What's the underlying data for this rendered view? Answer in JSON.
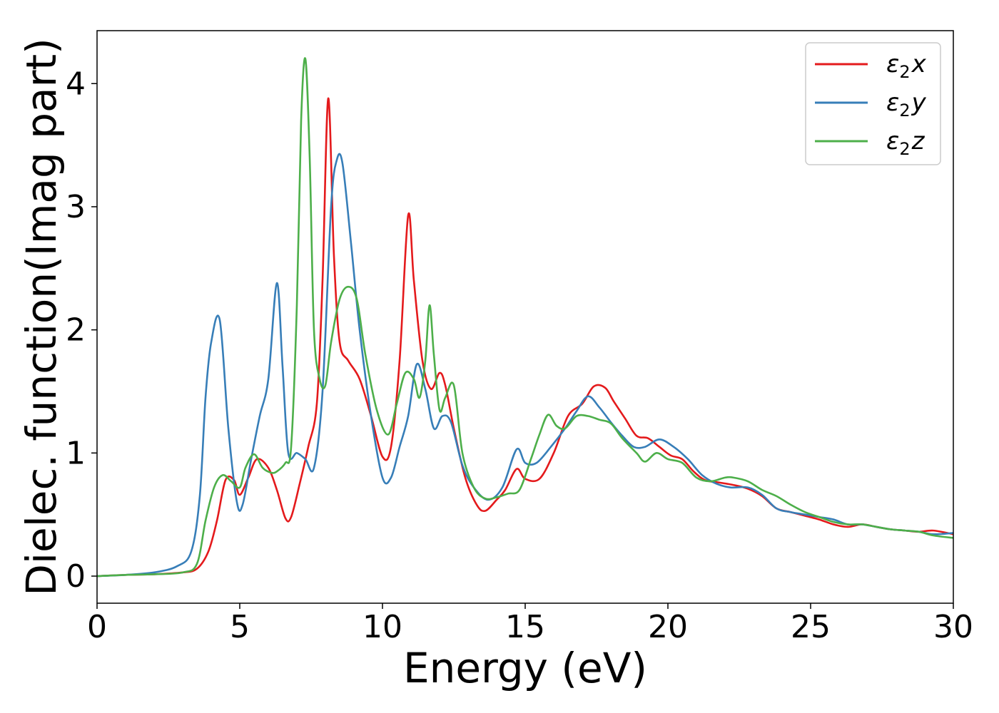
{
  "chart_data": {
    "type": "line",
    "title": "",
    "xlabel": "Energy (eV)",
    "ylabel": "Dielec. function(Imag part)",
    "xlim": [
      0,
      30
    ],
    "ylim": [
      -0.22,
      4.43
    ],
    "xticks": [
      0,
      5,
      10,
      15,
      20,
      25,
      30
    ],
    "yticks": [
      0,
      1,
      2,
      3,
      4
    ],
    "grid": false,
    "legend_position": "top-right",
    "series": [
      {
        "name": "ε₂x",
        "legend_main": "ε",
        "legend_sub": "2",
        "legend_suffix": "x",
        "color": "#e41a1c",
        "x": [
          0,
          1,
          2,
          3,
          3.5,
          3.9,
          4.2,
          4.5,
          4.8,
          5.0,
          5.3,
          5.6,
          6.0,
          6.3,
          6.6,
          6.8,
          7.1,
          7.4,
          7.7,
          7.9,
          8.1,
          8.3,
          8.5,
          8.8,
          9.2,
          9.6,
          10.0,
          10.3,
          10.6,
          10.9,
          11.1,
          11.4,
          11.7,
          12.0,
          12.2,
          12.5,
          12.9,
          13.3,
          13.6,
          14.0,
          14.3,
          14.7,
          15.0,
          15.5,
          16.0,
          16.5,
          17.0,
          17.4,
          17.8,
          18.1,
          18.5,
          18.9,
          19.3,
          19.7,
          20.1,
          20.5,
          20.9,
          21.3,
          21.8,
          22.3,
          22.8,
          23.3,
          23.8,
          24.3,
          24.8,
          25.3,
          25.8,
          26.3,
          26.8,
          27.3,
          27.8,
          28.3,
          28.8,
          29.3,
          30
        ],
        "values": [
          0.0,
          0.01,
          0.015,
          0.03,
          0.06,
          0.2,
          0.45,
          0.78,
          0.78,
          0.66,
          0.8,
          0.95,
          0.88,
          0.7,
          0.47,
          0.48,
          0.75,
          1.05,
          1.4,
          2.4,
          3.88,
          2.6,
          1.9,
          1.75,
          1.6,
          1.3,
          0.97,
          1.05,
          1.75,
          2.93,
          2.4,
          1.75,
          1.52,
          1.65,
          1.55,
          1.2,
          0.8,
          0.58,
          0.53,
          0.62,
          0.7,
          0.87,
          0.79,
          0.79,
          1.0,
          1.3,
          1.4,
          1.54,
          1.53,
          1.42,
          1.28,
          1.14,
          1.12,
          1.05,
          0.98,
          0.95,
          0.85,
          0.78,
          0.76,
          0.74,
          0.71,
          0.65,
          0.55,
          0.52,
          0.49,
          0.46,
          0.42,
          0.4,
          0.42,
          0.4,
          0.38,
          0.37,
          0.36,
          0.37,
          0.34
        ]
      },
      {
        "name": "ε₂y",
        "legend_main": "ε",
        "legend_sub": "2",
        "legend_suffix": "y",
        "color": "#377eb8",
        "x": [
          0,
          1,
          2,
          2.8,
          3.3,
          3.6,
          3.8,
          4.0,
          4.3,
          4.6,
          4.9,
          5.1,
          5.4,
          5.7,
          6.0,
          6.3,
          6.5,
          6.7,
          7.0,
          7.3,
          7.6,
          7.9,
          8.2,
          8.4,
          8.6,
          8.9,
          9.2,
          9.6,
          10.0,
          10.3,
          10.6,
          10.9,
          11.2,
          11.5,
          11.8,
          12.1,
          12.4,
          12.8,
          13.2,
          13.7,
          14.2,
          14.7,
          15.0,
          15.4,
          15.9,
          16.4,
          16.8,
          17.2,
          17.6,
          18.0,
          18.4,
          18.8,
          19.2,
          19.7,
          20.2,
          20.7,
          21.2,
          21.7,
          22.2,
          22.8,
          23.3,
          23.8,
          24.3,
          24.8,
          25.3,
          25.8,
          26.3,
          26.8,
          27.3,
          27.8,
          28.3,
          28.8,
          29.3,
          30
        ],
        "values": [
          0.0,
          0.01,
          0.03,
          0.08,
          0.2,
          0.65,
          1.45,
          1.9,
          2.08,
          1.2,
          0.6,
          0.58,
          0.95,
          1.3,
          1.6,
          2.38,
          1.7,
          1.0,
          1.0,
          0.95,
          0.88,
          1.5,
          3.0,
          3.38,
          3.35,
          2.7,
          2.0,
          1.3,
          0.8,
          0.8,
          1.05,
          1.3,
          1.72,
          1.52,
          1.2,
          1.3,
          1.25,
          0.9,
          0.72,
          0.62,
          0.72,
          1.03,
          0.92,
          0.92,
          1.05,
          1.2,
          1.34,
          1.46,
          1.37,
          1.25,
          1.14,
          1.05,
          1.05,
          1.11,
          1.05,
          0.95,
          0.82,
          0.75,
          0.72,
          0.72,
          0.66,
          0.55,
          0.52,
          0.5,
          0.48,
          0.46,
          0.42,
          0.42,
          0.4,
          0.38,
          0.37,
          0.36,
          0.34,
          0.35
        ]
      },
      {
        "name": "ε₂z",
        "legend_main": "ε",
        "legend_sub": "2",
        "legend_suffix": "z",
        "color": "#4daf4a",
        "x": [
          0,
          1,
          2,
          3,
          3.5,
          3.8,
          4.1,
          4.4,
          4.7,
          5.0,
          5.2,
          5.5,
          5.8,
          6.1,
          6.3,
          6.6,
          6.8,
          7.0,
          7.15,
          7.3,
          7.45,
          7.6,
          7.8,
          8.0,
          8.2,
          8.5,
          8.8,
          9.1,
          9.4,
          9.8,
          10.2,
          10.5,
          10.8,
          11.1,
          11.3,
          11.5,
          11.65,
          11.8,
          12.0,
          12.2,
          12.5,
          12.8,
          13.2,
          13.6,
          14.0,
          14.4,
          14.8,
          15.2,
          15.5,
          15.8,
          16.1,
          16.4,
          16.8,
          17.2,
          17.6,
          18.0,
          18.4,
          18.9,
          19.2,
          19.6,
          20.0,
          20.5,
          21.0,
          21.5,
          22.0,
          22.3,
          22.8,
          23.3,
          23.8,
          24.3,
          24.8,
          25.3,
          25.8,
          26.3,
          26.8,
          27.3,
          27.8,
          28.3,
          28.8,
          29.3,
          30
        ],
        "values": [
          0.0,
          0.01,
          0.015,
          0.03,
          0.1,
          0.45,
          0.72,
          0.82,
          0.77,
          0.72,
          0.88,
          0.99,
          0.88,
          0.84,
          0.85,
          0.92,
          1.05,
          2.2,
          3.7,
          4.2,
          3.4,
          2.0,
          1.6,
          1.55,
          1.9,
          2.25,
          2.35,
          2.25,
          1.8,
          1.35,
          1.15,
          1.4,
          1.65,
          1.6,
          1.45,
          1.75,
          2.2,
          1.8,
          1.35,
          1.45,
          1.55,
          1.0,
          0.72,
          0.63,
          0.64,
          0.67,
          0.7,
          0.95,
          1.15,
          1.31,
          1.22,
          1.2,
          1.3,
          1.3,
          1.27,
          1.24,
          1.12,
          1.0,
          0.93,
          1.0,
          0.95,
          0.92,
          0.8,
          0.77,
          0.8,
          0.8,
          0.77,
          0.7,
          0.65,
          0.58,
          0.52,
          0.48,
          0.44,
          0.42,
          0.42,
          0.4,
          0.38,
          0.37,
          0.36,
          0.33,
          0.31
        ]
      }
    ]
  }
}
